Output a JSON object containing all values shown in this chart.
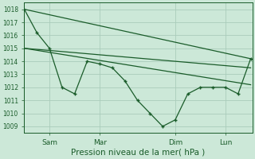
{
  "background_color": "#cce8d8",
  "grid_color": "#aaccbb",
  "line_color": "#1a5c2a",
  "ylim": [
    1008.5,
    1018.5
  ],
  "yticks": [
    1009,
    1010,
    1011,
    1012,
    1013,
    1014,
    1015,
    1016,
    1017,
    1018
  ],
  "xlabel": "Pression niveau de la mer( hPa )",
  "xlabel_fontsize": 7.5,
  "xtick_labels": [
    "Sam",
    "Mar",
    "Dim",
    "Lun"
  ],
  "xtick_positions": [
    16,
    48,
    96,
    128
  ],
  "xlim": [
    0,
    145
  ],
  "main_x": [
    0,
    8,
    16,
    24,
    32,
    40,
    48,
    56,
    64,
    72,
    80,
    88,
    96,
    104,
    112,
    120,
    128,
    136,
    144
  ],
  "main_y": [
    1018.0,
    1016.2,
    1015.0,
    1012.0,
    1011.5,
    1014.0,
    1013.8,
    1013.5,
    1012.5,
    1011.0,
    1010.0,
    1009.0,
    1009.5,
    1011.5,
    1012.0,
    1012.0,
    1012.0,
    1011.5,
    1014.2
  ],
  "trend1_x": [
    0,
    144
  ],
  "trend1_y": [
    1018.0,
    1014.2
  ],
  "trend2_x": [
    0,
    144
  ],
  "trend2_y": [
    1015.0,
    1012.2
  ],
  "trend3_x": [
    0,
    144
  ],
  "trend3_y": [
    1015.0,
    1013.5
  ],
  "ytick_fontsize": 5.5,
  "xtick_fontsize": 6.5
}
